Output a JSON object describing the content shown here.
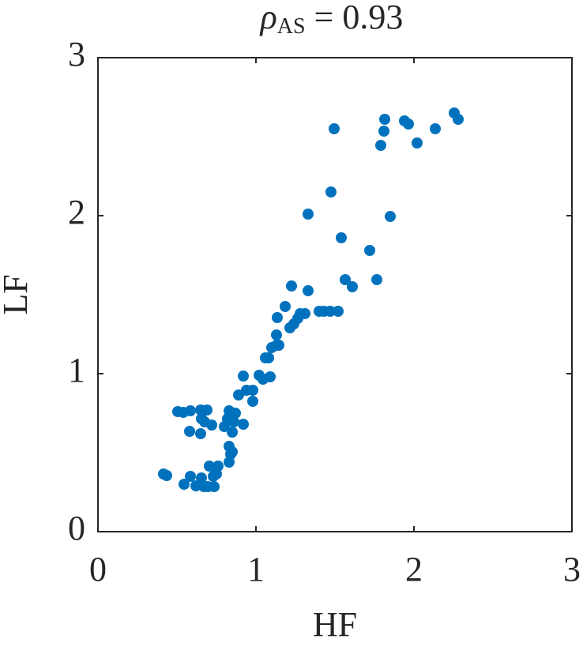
{
  "chart_data": {
    "type": "scatter",
    "title": [
      "ρ",
      "AS",
      " = 0.93"
    ],
    "x_label": "HF",
    "y_label": "LF",
    "xlim": [
      0,
      3
    ],
    "ylim": [
      0,
      3
    ],
    "xticks": [
      0,
      1,
      2,
      3
    ],
    "yticks": [
      0,
      1,
      2,
      3
    ],
    "grid": false,
    "series": [
      {
        "color": "#0072bd",
        "x": [
          0.415,
          0.435,
          0.545,
          0.585,
          0.62,
          0.655,
          0.67,
          0.695,
          0.705,
          0.73,
          0.735,
          0.76,
          0.75,
          0.83,
          0.84,
          0.83,
          0.85,
          0.505,
          0.54,
          0.585,
          0.65,
          0.69,
          0.655,
          0.675,
          0.72,
          0.58,
          0.65,
          0.8,
          0.82,
          0.83,
          0.85,
          0.86,
          0.87,
          0.89,
          0.92,
          0.92,
          0.94,
          0.98,
          0.98,
          1.02,
          1.045,
          1.06,
          1.08,
          1.09,
          1.1,
          1.13,
          1.13,
          1.145,
          1.135,
          1.185,
          1.215,
          1.24,
          1.265,
          1.225,
          1.28,
          1.31,
          1.33,
          1.33,
          1.4,
          1.43,
          1.47,
          1.52,
          1.475,
          1.495,
          1.54,
          1.565,
          1.61,
          1.72,
          1.765,
          1.79,
          1.81,
          1.815,
          1.85,
          1.94,
          1.965,
          2.02,
          2.135,
          2.255,
          2.28
        ],
        "values": [
          0.365,
          0.355,
          0.3,
          0.35,
          0.29,
          0.34,
          0.285,
          0.285,
          0.415,
          0.35,
          0.285,
          0.415,
          0.365,
          0.44,
          0.49,
          0.54,
          0.505,
          0.76,
          0.755,
          0.765,
          0.77,
          0.77,
          0.715,
          0.695,
          0.675,
          0.635,
          0.62,
          0.665,
          0.715,
          0.765,
          0.63,
          0.695,
          0.75,
          0.865,
          0.68,
          0.985,
          0.895,
          0.895,
          0.825,
          0.99,
          0.965,
          1.1,
          1.1,
          0.98,
          1.165,
          1.18,
          1.245,
          1.18,
          1.355,
          1.425,
          1.29,
          1.315,
          1.35,
          1.555,
          1.38,
          1.38,
          1.525,
          2.01,
          1.395,
          1.395,
          1.395,
          1.395,
          2.15,
          2.55,
          1.86,
          1.595,
          1.55,
          1.78,
          1.595,
          2.445,
          2.535,
          2.61,
          1.995,
          2.6,
          2.58,
          2.46,
          2.55,
          2.65,
          2.61
        ]
      }
    ]
  }
}
